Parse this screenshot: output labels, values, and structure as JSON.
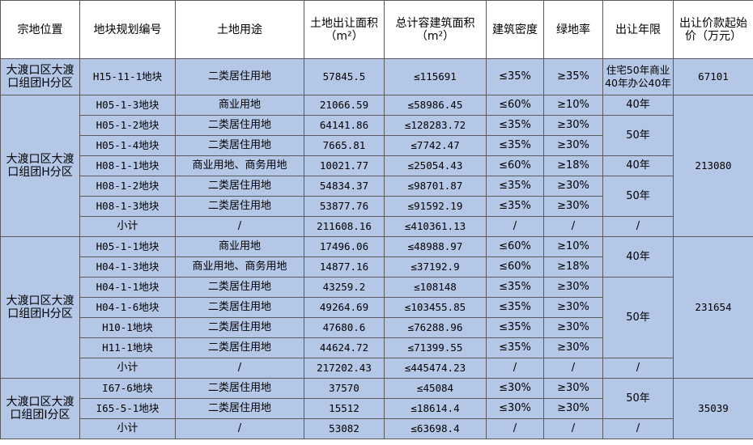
{
  "headers": {
    "location": "宗地位置",
    "plot_code": "地块规划编号",
    "land_use": "土地用途",
    "area_line1": "土地出让面积",
    "area_line2": "（m²）",
    "gfa_line1": "总计容建筑面积",
    "gfa_line2": "（m²）",
    "density": "建筑密度",
    "green": "绿地率",
    "years": "出让年限",
    "price_line1": "出让价款起始",
    "price_line2": "价（万元）"
  },
  "groups": [
    {
      "location": "大渡口区大渡口组团H分区",
      "price": "67101",
      "rows": [
        {
          "code": "H15-11-1地块",
          "use": "二类居住用地",
          "area": "57845.5",
          "gfa": "≤115691",
          "density": "≤35%",
          "green": "≥35%",
          "years": "住宅50年商业40年办公40年"
        }
      ]
    },
    {
      "location": "大渡口区大渡口组团H分区",
      "price": "213080",
      "rows": [
        {
          "code": "H05-1-3地块",
          "use": "商业用地",
          "area": "21066.59",
          "gfa": "≤58986.45",
          "density": "≤60%",
          "green": "≥10%"
        },
        {
          "code": "H05-1-2地块",
          "use": "二类居住用地",
          "area": "64141.86",
          "gfa": "≤128283.72",
          "density": "≤35%",
          "green": "≥30%"
        },
        {
          "code": "H05-1-4地块",
          "use": "二类居住用地",
          "area": "7665.81",
          "gfa": "≤7742.47",
          "density": "≤35%",
          "green": "≥30%"
        },
        {
          "code": "H08-1-1地块",
          "use": "商业用地、商务用地",
          "area": "10021.77",
          "gfa": "≤25054.43",
          "density": "≤60%",
          "green": "≥18%"
        },
        {
          "code": "H08-1-2地块",
          "use": "二类居住用地",
          "area": "54834.37",
          "gfa": "≤98701.87",
          "density": "≤35%",
          "green": "≥30%"
        },
        {
          "code": "H08-1-3地块",
          "use": "二类居住用地",
          "area": "53877.76",
          "gfa": "≤91592.19",
          "density": "≤35%",
          "green": "≥30%"
        }
      ],
      "years": [
        "40年",
        "50年",
        "40年",
        "50年"
      ],
      "subtotal": {
        "label": "小计",
        "use": "/",
        "area": "211608.16",
        "gfa": "≤410361.13",
        "density": "/",
        "green": "/",
        "years": "/"
      }
    },
    {
      "location": "大渡口区大渡口组团H分区",
      "price": "231654",
      "rows": [
        {
          "code": "H05-1-1地块",
          "use": "商业用地",
          "area": "17496.06",
          "gfa": "≤48988.97",
          "density": "≤60%",
          "green": "≥10%"
        },
        {
          "code": "H04-1-3地块",
          "use": "商业用地、商务用地",
          "area": "14877.16",
          "gfa": "≤37192.9",
          "density": "≤60%",
          "green": "≥18%"
        },
        {
          "code": "H04-1-1地块",
          "use": "二类居住用地",
          "area": "43259.2",
          "gfa": "≤108148",
          "density": "≤35%",
          "green": "≥30%"
        },
        {
          "code": "H04-1-6地块",
          "use": "二类居住用地",
          "area": "49264.69",
          "gfa": "≤103455.85",
          "density": "≤35%",
          "green": "≥30%"
        },
        {
          "code": "H10-1地块",
          "use": "二类居住用地",
          "area": "47680.6",
          "gfa": "≤76288.96",
          "density": "≤35%",
          "green": "≥30%"
        },
        {
          "code": "H11-1地块",
          "use": "二类居住用地",
          "area": "44624.72",
          "gfa": "≤71399.55",
          "density": "≤35%",
          "green": "≥30%"
        }
      ],
      "years": [
        "40年",
        "50年"
      ],
      "subtotal": {
        "label": "小计",
        "use": "/",
        "area": "217202.43",
        "gfa": "≤445474.23",
        "density": "/",
        "green": "/",
        "years": "/"
      }
    },
    {
      "location": "大渡口区大渡口组团I分区",
      "price": "35039",
      "rows": [
        {
          "code": "I67-6地块",
          "use": "二类居住用地",
          "area": "37570",
          "gfa": "≤45084",
          "density": "≤30%",
          "green": "≥30%"
        },
        {
          "code": "I65-5-1地块",
          "use": "二类居住用地",
          "area": "15512",
          "gfa": "≤18614.4",
          "density": "≤30%",
          "green": "≥30%"
        }
      ],
      "years": [
        "50年"
      ],
      "subtotal": {
        "label": "小计",
        "use": "/",
        "area": "53082",
        "gfa": "≤63698.4",
        "density": "/",
        "green": "/",
        "years": "/"
      }
    }
  ]
}
